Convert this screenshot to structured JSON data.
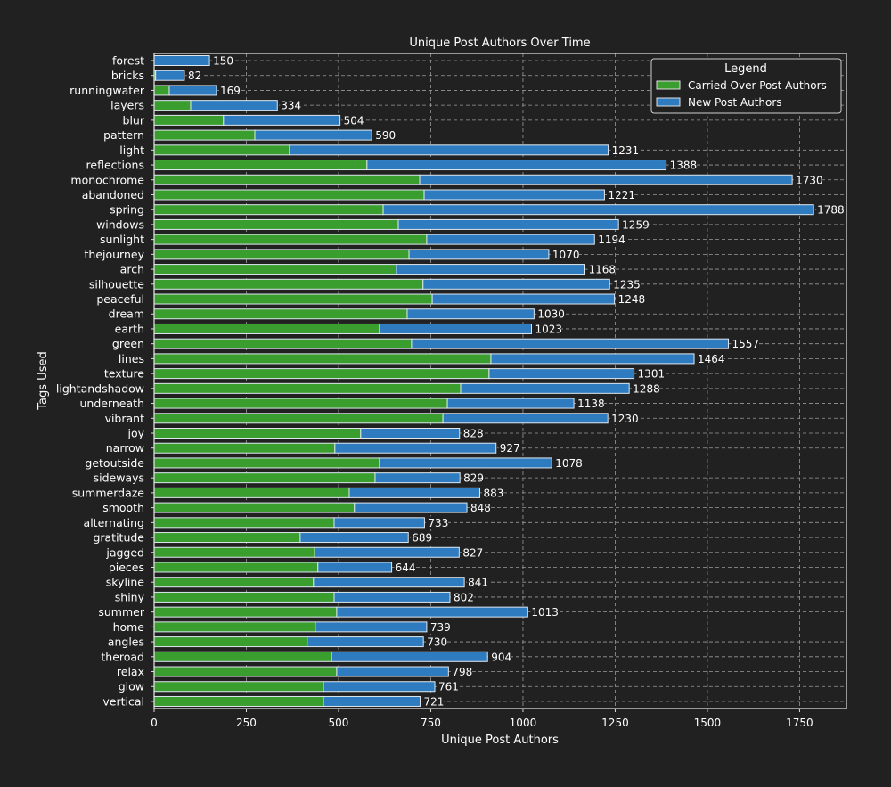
{
  "chart_data": {
    "type": "bar",
    "orientation": "horizontal",
    "stacked": true,
    "title": "Unique Post Authors Over Time",
    "xlabel": "Unique Post Authors",
    "ylabel": "Tags Used",
    "xlim": [
      0,
      1877
    ],
    "xticks": [
      0,
      250,
      500,
      750,
      1000,
      1250,
      1500,
      1750
    ],
    "grid": true,
    "legend": {
      "title": "Legend",
      "placement": "top-right"
    },
    "categories": [
      "forest",
      "bricks",
      "runningwater",
      "layers",
      "blur",
      "pattern",
      "light",
      "reflections",
      "monochrome",
      "abandoned",
      "spring",
      "windows",
      "sunlight",
      "thejourney",
      "arch",
      "silhouette",
      "peaceful",
      "dream",
      "earth",
      "green",
      "lines",
      "texture",
      "lightandshadow",
      "underneath",
      "vibrant",
      "joy",
      "narrow",
      "getoutside",
      "sideways",
      "summerdaze",
      "smooth",
      "alternating",
      "gratitude",
      "jagged",
      "pieces",
      "skyline",
      "shiny",
      "summer",
      "home",
      "angles",
      "theroad",
      "relax",
      "glow",
      "vertical"
    ],
    "series": [
      {
        "name": "Carried Over Post Authors",
        "color": "#3a9e2f",
        "values": [
          0,
          4,
          41,
          99,
          188,
          273,
          367,
          577,
          720,
          732,
          621,
          662,
          739,
          691,
          657,
          729,
          754,
          686,
          611,
          698,
          913,
          908,
          831,
          795,
          783,
          560,
          490,
          611,
          599,
          529,
          543,
          488,
          396,
          435,
          444,
          432,
          488,
          495,
          437,
          415,
          481,
          495,
          459,
          459
        ]
      },
      {
        "name": "New Post Authors",
        "color": "#2e7bbf",
        "values": [
          150,
          78,
          128,
          235,
          316,
          317,
          864,
          811,
          1010,
          489,
          1167,
          597,
          455,
          379,
          511,
          506,
          494,
          344,
          412,
          859,
          551,
          393,
          457,
          343,
          447,
          268,
          437,
          467,
          230,
          354,
          305,
          245,
          293,
          392,
          200,
          409,
          314,
          518,
          302,
          315,
          423,
          303,
          302,
          262
        ]
      }
    ],
    "totals": [
      150,
      82,
      169,
      334,
      504,
      590,
      1231,
      1388,
      1730,
      1221,
      1788,
      1259,
      1194,
      1070,
      1168,
      1235,
      1248,
      1030,
      1023,
      1557,
      1464,
      1301,
      1288,
      1138,
      1230,
      828,
      927,
      1078,
      829,
      883,
      848,
      733,
      689,
      827,
      644,
      841,
      802,
      1013,
      739,
      730,
      904,
      798,
      761,
      721
    ]
  }
}
